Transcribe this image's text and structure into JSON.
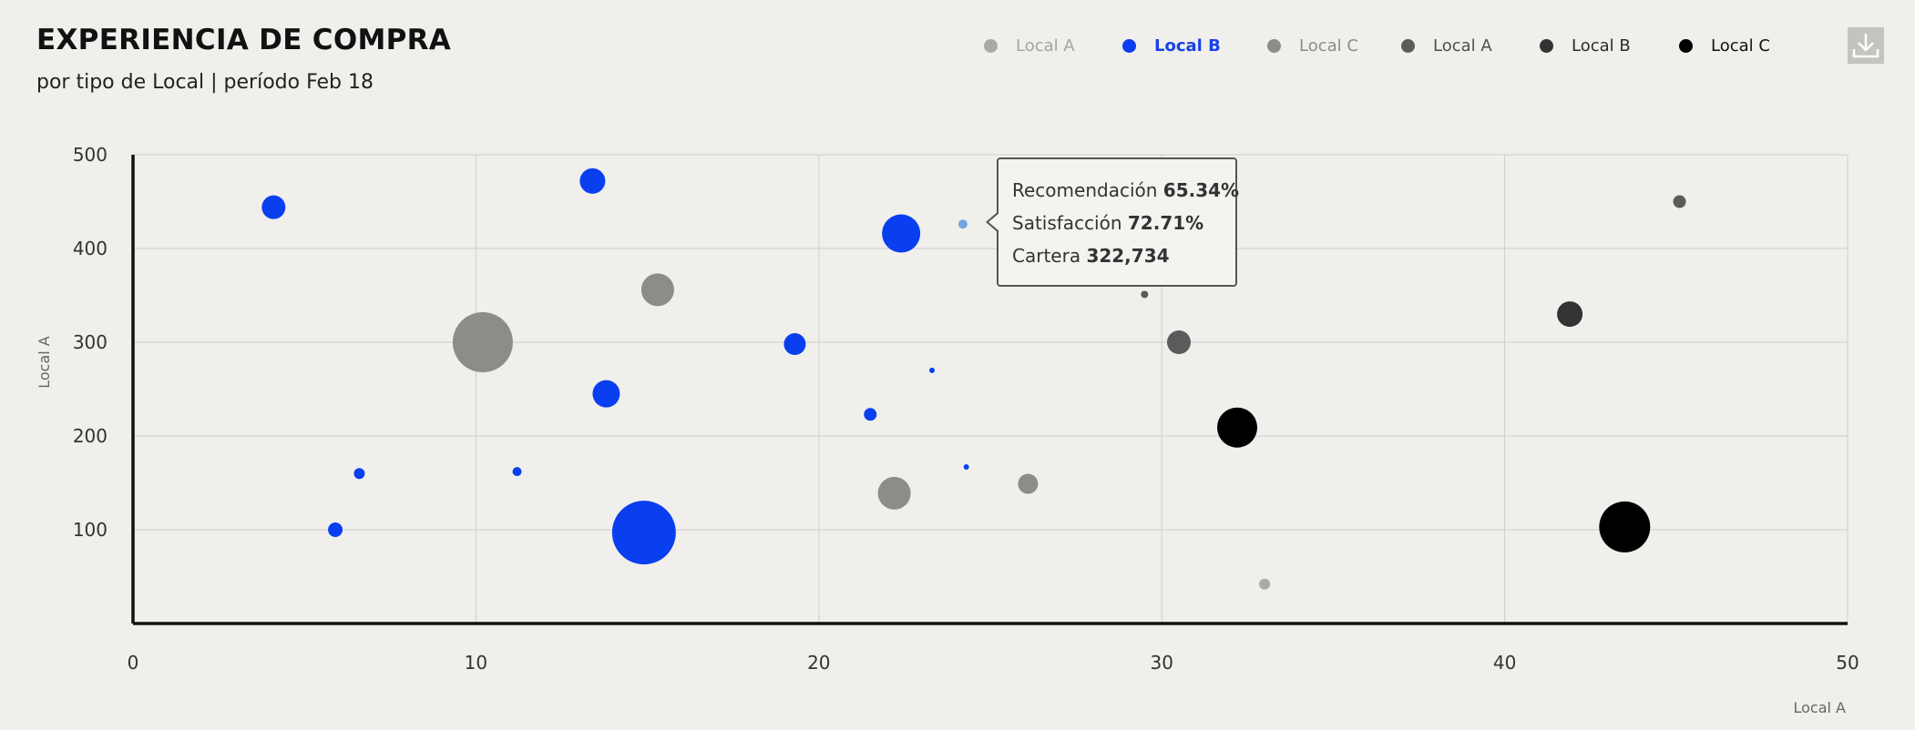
{
  "header": {
    "title": "EXPERIENCIA DE COMPRA",
    "subtitle": "por tipo de Local  | período Feb 18"
  },
  "toolbar": {
    "download_icon": "download-icon"
  },
  "legend": {
    "placement": "top-right",
    "items": [
      {
        "label": "Local A",
        "color": "#aaa9a5",
        "text_color": "#a5a4a0",
        "bold": false
      },
      {
        "label": "Local B",
        "color": "#0a3ff0",
        "text_color": "#1742e6",
        "bold": true
      },
      {
        "label": "Local C",
        "color": "#8d8c86",
        "text_color": "#8d8c86",
        "bold": false
      },
      {
        "label": "Local A",
        "color": "#5b5b5b",
        "text_color": "#4e4e4e",
        "bold": false
      },
      {
        "label": "Local B",
        "color": "#333333",
        "text_color": "#2b2b2b",
        "bold": false
      },
      {
        "label": "Local C",
        "color": "#000000",
        "text_color": "#111111",
        "bold": false
      }
    ]
  },
  "tooltip": {
    "rows": [
      {
        "label": "Recomendación",
        "value": "65.34%"
      },
      {
        "label": "Satisfacción",
        "value": "72.71%"
      },
      {
        "label": "Cartera",
        "value": "322,734"
      }
    ]
  },
  "chart_data": {
    "type": "scatter",
    "subtype": "bubble",
    "title": "EXPERIENCIA DE COMPRA",
    "subtitle": "por tipo de Local  | período Feb 18",
    "xlabel": "Local A",
    "ylabel": "Local A",
    "xlim": [
      0,
      50
    ],
    "ylim": [
      0,
      500
    ],
    "xticks": [
      "0",
      "10",
      "20",
      "30",
      "40",
      "50"
    ],
    "yticks": [
      "100",
      "200",
      "300",
      "400",
      "500"
    ],
    "grid": true,
    "legend_placement": "top-right",
    "series": [
      {
        "name": "Local A",
        "color": "#aaa9a5",
        "points": [
          {
            "x": 33.0,
            "y": 42,
            "size": 6
          }
        ]
      },
      {
        "name": "Local B",
        "color": "#0a3ff0",
        "points": [
          {
            "x": 4.1,
            "y": 444,
            "size": 13
          },
          {
            "x": 13.4,
            "y": 472,
            "size": 14
          },
          {
            "x": 22.4,
            "y": 416,
            "size": 21
          },
          {
            "x": 19.3,
            "y": 298,
            "size": 12
          },
          {
            "x": 13.8,
            "y": 245,
            "size": 15
          },
          {
            "x": 23.3,
            "y": 270,
            "size": 3
          },
          {
            "x": 21.5,
            "y": 223,
            "size": 7
          },
          {
            "x": 6.6,
            "y": 160,
            "size": 6
          },
          {
            "x": 11.2,
            "y": 162,
            "size": 5
          },
          {
            "x": 24.3,
            "y": 167,
            "size": 3
          },
          {
            "x": 5.9,
            "y": 100,
            "size": 8
          },
          {
            "x": 14.9,
            "y": 97,
            "size": 35
          }
        ]
      },
      {
        "name": "Local C",
        "color": "#8d8c86",
        "points": [
          {
            "x": 10.2,
            "y": 300,
            "size": 33
          },
          {
            "x": 15.3,
            "y": 356,
            "size": 18
          },
          {
            "x": 22.2,
            "y": 139,
            "size": 18
          },
          {
            "x": 26.1,
            "y": 149,
            "size": 11
          }
        ]
      },
      {
        "name": "Local A",
        "color": "#5b5b5b",
        "points": [
          {
            "x": 29.5,
            "y": 351,
            "size": 4
          },
          {
            "x": 30.5,
            "y": 300,
            "size": 13
          },
          {
            "x": 45.1,
            "y": 450,
            "size": 7
          }
        ]
      },
      {
        "name": "Local B",
        "color": "#333333",
        "points": [
          {
            "x": 41.9,
            "y": 330,
            "size": 14
          }
        ]
      },
      {
        "name": "Local C",
        "color": "#000000",
        "points": [
          {
            "x": 32.2,
            "y": 209,
            "size": 22
          },
          {
            "x": 43.5,
            "y": 103,
            "size": 28
          }
        ]
      }
    ],
    "highlighted_point": {
      "x": 24.2,
      "y": 426,
      "color": "#6fa6e0",
      "size": 5
    }
  }
}
